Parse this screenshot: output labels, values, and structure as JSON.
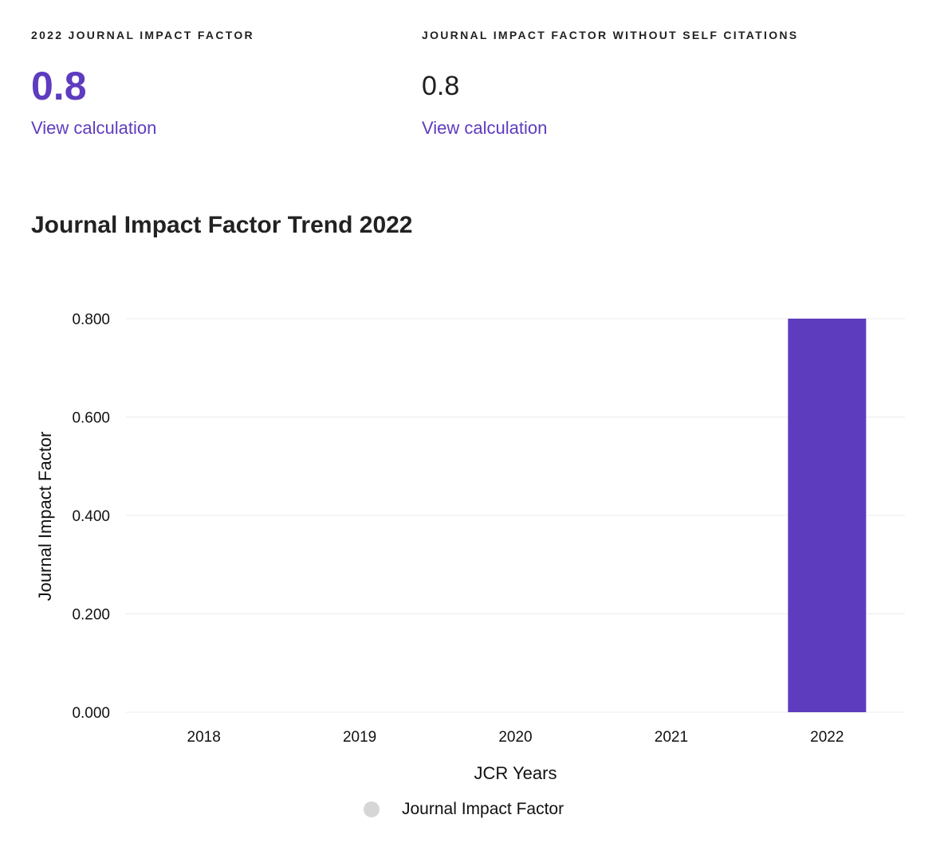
{
  "metrics": {
    "jif": {
      "label": "2022 JOURNAL IMPACT FACTOR",
      "value": "0.8",
      "link": "View calculation"
    },
    "jif_no_self": {
      "label": "JOURNAL IMPACT FACTOR WITHOUT SELF CITATIONS",
      "value": "0.8",
      "link": "View calculation"
    }
  },
  "colors": {
    "accent": "#5e3cbe",
    "legend_swatch": "#d6d6d6",
    "grid": "#ebebeb"
  },
  "chart_data": {
    "type": "bar",
    "title": "Journal Impact Factor Trend 2022",
    "xlabel": "JCR Years",
    "ylabel": "Journal Impact Factor",
    "categories": [
      "2018",
      "2019",
      "2020",
      "2021",
      "2022"
    ],
    "series": [
      {
        "name": "Journal Impact Factor",
        "values": [
          null,
          null,
          null,
          null,
          0.8
        ]
      }
    ],
    "ylim": [
      0,
      0.8
    ],
    "yticks": [
      "0.000",
      "0.200",
      "0.400",
      "0.600",
      "0.800"
    ],
    "grid": true,
    "legend_position": "bottom"
  }
}
